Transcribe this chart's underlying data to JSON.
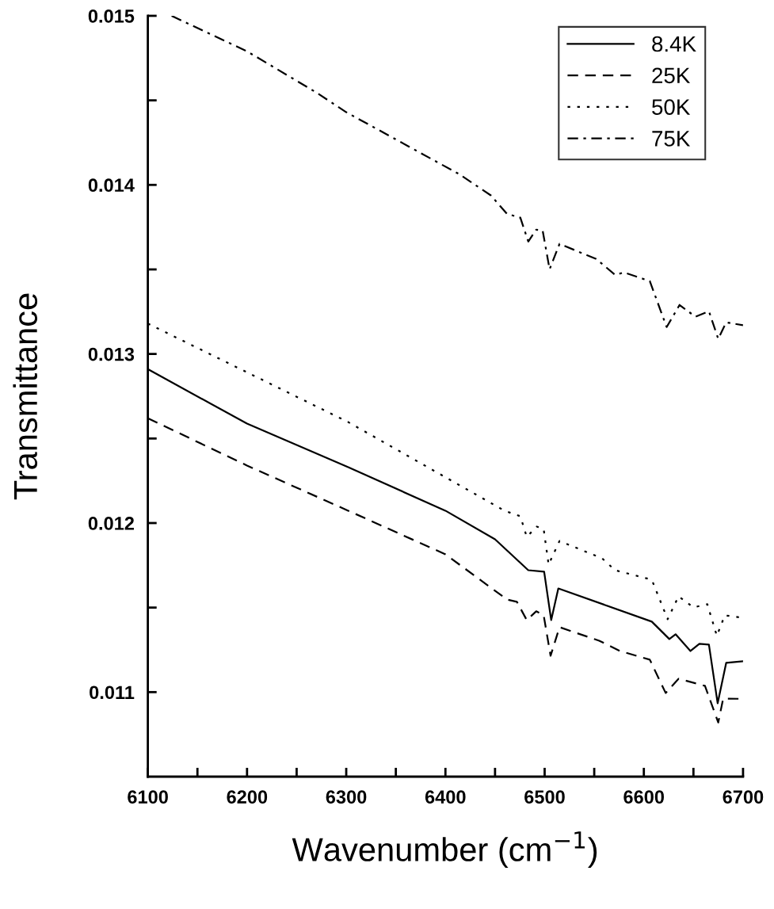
{
  "chart_data": {
    "type": "line",
    "xlabel": "Wavenumber (cm$^{−1}$)",
    "ylabel": "Transmittance",
    "xlim": [
      6100,
      6700
    ],
    "ylim": [
      0.0105,
      0.015
    ],
    "xticks": [
      6100,
      {
        "value": 6150,
        "label": null
      },
      6200,
      {
        "value": 6250,
        "label": null
      },
      6300,
      {
        "value": 6350,
        "label": null
      },
      6400,
      {
        "value": 6450,
        "label": null
      },
      6500,
      {
        "value": 6550,
        "label": null
      },
      6600,
      {
        "value": 6650,
        "label": null
      },
      6700
    ],
    "yticks": [
      0.011,
      {
        "value": 0.0115,
        "label": null
      },
      0.012,
      {
        "value": 0.0125,
        "label": null
      },
      0.013,
      {
        "value": 0.0135,
        "label": null
      },
      0.014,
      {
        "value": 0.0145,
        "label": null
      },
      0.015
    ],
    "legend": "top right",
    "grid": false,
    "marker": "none",
    "series": [
      {
        "name": "8.4K",
        "color": "#000000",
        "line_style": "solid",
        "x": [
          6100,
          6200,
          6302,
          6400,
          6450,
          6483.5,
          6499.5,
          6506.6,
          6513.8,
          6608,
          6625.7,
          6632,
          6647,
          6656,
          6665.6,
          6674.4,
          6683,
          6700
        ],
        "values": [
          0.01291,
          0.012588,
          0.01233,
          0.012073,
          0.011904,
          0.011721,
          0.011712,
          0.011426,
          0.011613,
          0.011417,
          0.011314,
          0.011342,
          0.011243,
          0.011286,
          0.011281,
          0.010934,
          0.011173,
          0.011183
        ]
      },
      {
        "name": "25K",
        "color": "#000000",
        "line_style": "dashed",
        "x": [
          6100,
          6200,
          6302,
          6400,
          6462,
          6472,
          6482,
          6491.5,
          6499,
          6506,
          6515,
          6555,
          6576,
          6606,
          6622,
          6635,
          6661.6,
          6675,
          6680,
          6700
        ],
        "values": [
          0.01262,
          0.01234,
          0.012073,
          0.011815,
          0.011548,
          0.011534,
          0.011426,
          0.011478,
          0.011455,
          0.011215,
          0.011384,
          0.011304,
          0.011243,
          0.011192,
          0.010995,
          0.011079,
          0.011037,
          0.01082,
          0.010962,
          0.01096
        ]
      },
      {
        "name": "50K",
        "color": "#000000",
        "line_style": "dotted",
        "x": [
          6100,
          6302,
          6459.5,
          6475.5,
          6482,
          6492,
          6499,
          6504,
          6515,
          6558,
          6571,
          6608,
          6624,
          6635,
          6650,
          6664,
          6673.6,
          6681.6,
          6700
        ],
        "values": [
          0.01318,
          0.012597,
          0.012073,
          0.01204,
          0.011918,
          0.011979,
          0.011965,
          0.011754,
          0.011894,
          0.011791,
          0.011721,
          0.011665,
          0.011431,
          0.011567,
          0.011501,
          0.01152,
          0.011333,
          0.011454,
          0.01144
        ]
      },
      {
        "name": "75K",
        "color": "#000000",
        "line_style": "dashdot",
        "x": [
          6124,
          6200,
          6270,
          6300,
          6414,
          6446,
          6462,
          6475.5,
          6483.5,
          6491.5,
          6498,
          6505,
          6515,
          6552,
          6571,
          6580,
          6606,
          6623,
          6636,
          6652,
          6665.6,
          6675,
          6683,
          6700
        ],
        "values": [
          0.015,
          0.01479,
          0.014546,
          0.01443,
          0.014063,
          0.013937,
          0.013829,
          0.013806,
          0.013665,
          0.013735,
          0.01373,
          0.013501,
          0.013651,
          0.013562,
          0.013468,
          0.013482,
          0.013431,
          0.013159,
          0.01329,
          0.01322,
          0.013253,
          0.013089,
          0.013187,
          0.01317
        ]
      }
    ]
  }
}
